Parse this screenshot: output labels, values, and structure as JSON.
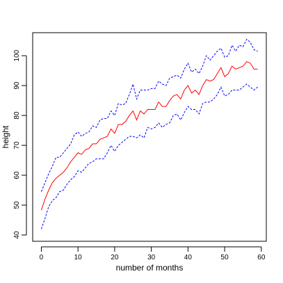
{
  "chart_data": {
    "type": "line",
    "xlabel": "number of months",
    "ylabel": "height",
    "x": [
      0,
      1,
      2,
      3,
      4,
      5,
      6,
      7,
      8,
      9,
      10,
      11,
      12,
      13,
      14,
      15,
      16,
      17,
      18,
      19,
      20,
      21,
      22,
      23,
      24,
      25,
      26,
      27,
      28,
      29,
      30,
      31,
      32,
      33,
      34,
      35,
      36,
      37,
      38,
      39,
      40,
      41,
      42,
      43,
      44,
      45,
      46,
      47,
      48,
      49,
      50,
      51,
      52,
      53,
      54,
      55,
      56,
      57,
      58,
      59
    ],
    "series": [
      {
        "color": "#ff0000",
        "dash": false,
        "values": [
          48.3,
          52,
          55,
          57.5,
          59,
          60,
          61,
          62.5,
          64.5,
          66,
          67.5,
          67,
          68.5,
          69,
          70.5,
          70.5,
          72,
          72.5,
          73,
          75.5,
          74,
          77,
          77,
          78,
          80,
          81.5,
          78.5,
          81.5,
          80.5,
          82,
          82,
          82,
          84.5,
          83,
          83,
          85,
          86.5,
          87,
          85.5,
          88.5,
          90,
          87.5,
          88.5,
          87,
          90,
          92,
          91.5,
          92,
          94,
          96,
          93,
          94,
          96.5,
          95.5,
          96,
          96.5,
          98,
          97.5,
          95.5,
          95.5
        ]
      },
      {
        "color": "#0000ff",
        "dash": true,
        "values": [
          54.5,
          57.5,
          60.5,
          63,
          66,
          66,
          67.5,
          69,
          70.5,
          73.5,
          74.5,
          73,
          74,
          74.5,
          76.5,
          76,
          78.5,
          79,
          79,
          81.5,
          80,
          84,
          83.5,
          84,
          87,
          90.5,
          85.5,
          88.5,
          88.5,
          88.5,
          89,
          89,
          91.5,
          90.5,
          90,
          92.5,
          93,
          93.5,
          92.5,
          95.5,
          97.5,
          94.5,
          95.5,
          94,
          96.5,
          100,
          98.5,
          100,
          101.5,
          102.5,
          99.5,
          100,
          103.5,
          101.5,
          103.5,
          103,
          105.5,
          104.5,
          102,
          101.5
        ]
      },
      {
        "color": "#0000ff",
        "dash": true,
        "values": [
          42,
          45.5,
          49.5,
          51.5,
          52.5,
          54.5,
          55,
          57,
          58.5,
          59.5,
          61.5,
          61,
          62.5,
          64,
          64.5,
          65.5,
          65.5,
          65.5,
          67.5,
          70,
          68,
          70,
          71,
          72,
          73,
          73,
          72.5,
          73.5,
          72.5,
          76,
          75.5,
          76,
          77.5,
          76,
          77,
          77.5,
          80,
          80.5,
          78.5,
          81,
          83,
          82,
          82,
          80.5,
          84,
          84.5,
          84.5,
          85.5,
          87,
          89.5,
          86.5,
          87,
          88.5,
          88.5,
          88.5,
          89.5,
          90.5,
          89.5,
          88.5,
          89.5
        ]
      }
    ],
    "xlim": [
      -2.36,
      61.36
    ],
    "ylim": [
      37.9,
      107.7
    ],
    "xticks": [
      0,
      10,
      20,
      30,
      40,
      50,
      60
    ],
    "yticks": [
      40,
      50,
      60,
      70,
      80,
      90,
      100
    ]
  }
}
